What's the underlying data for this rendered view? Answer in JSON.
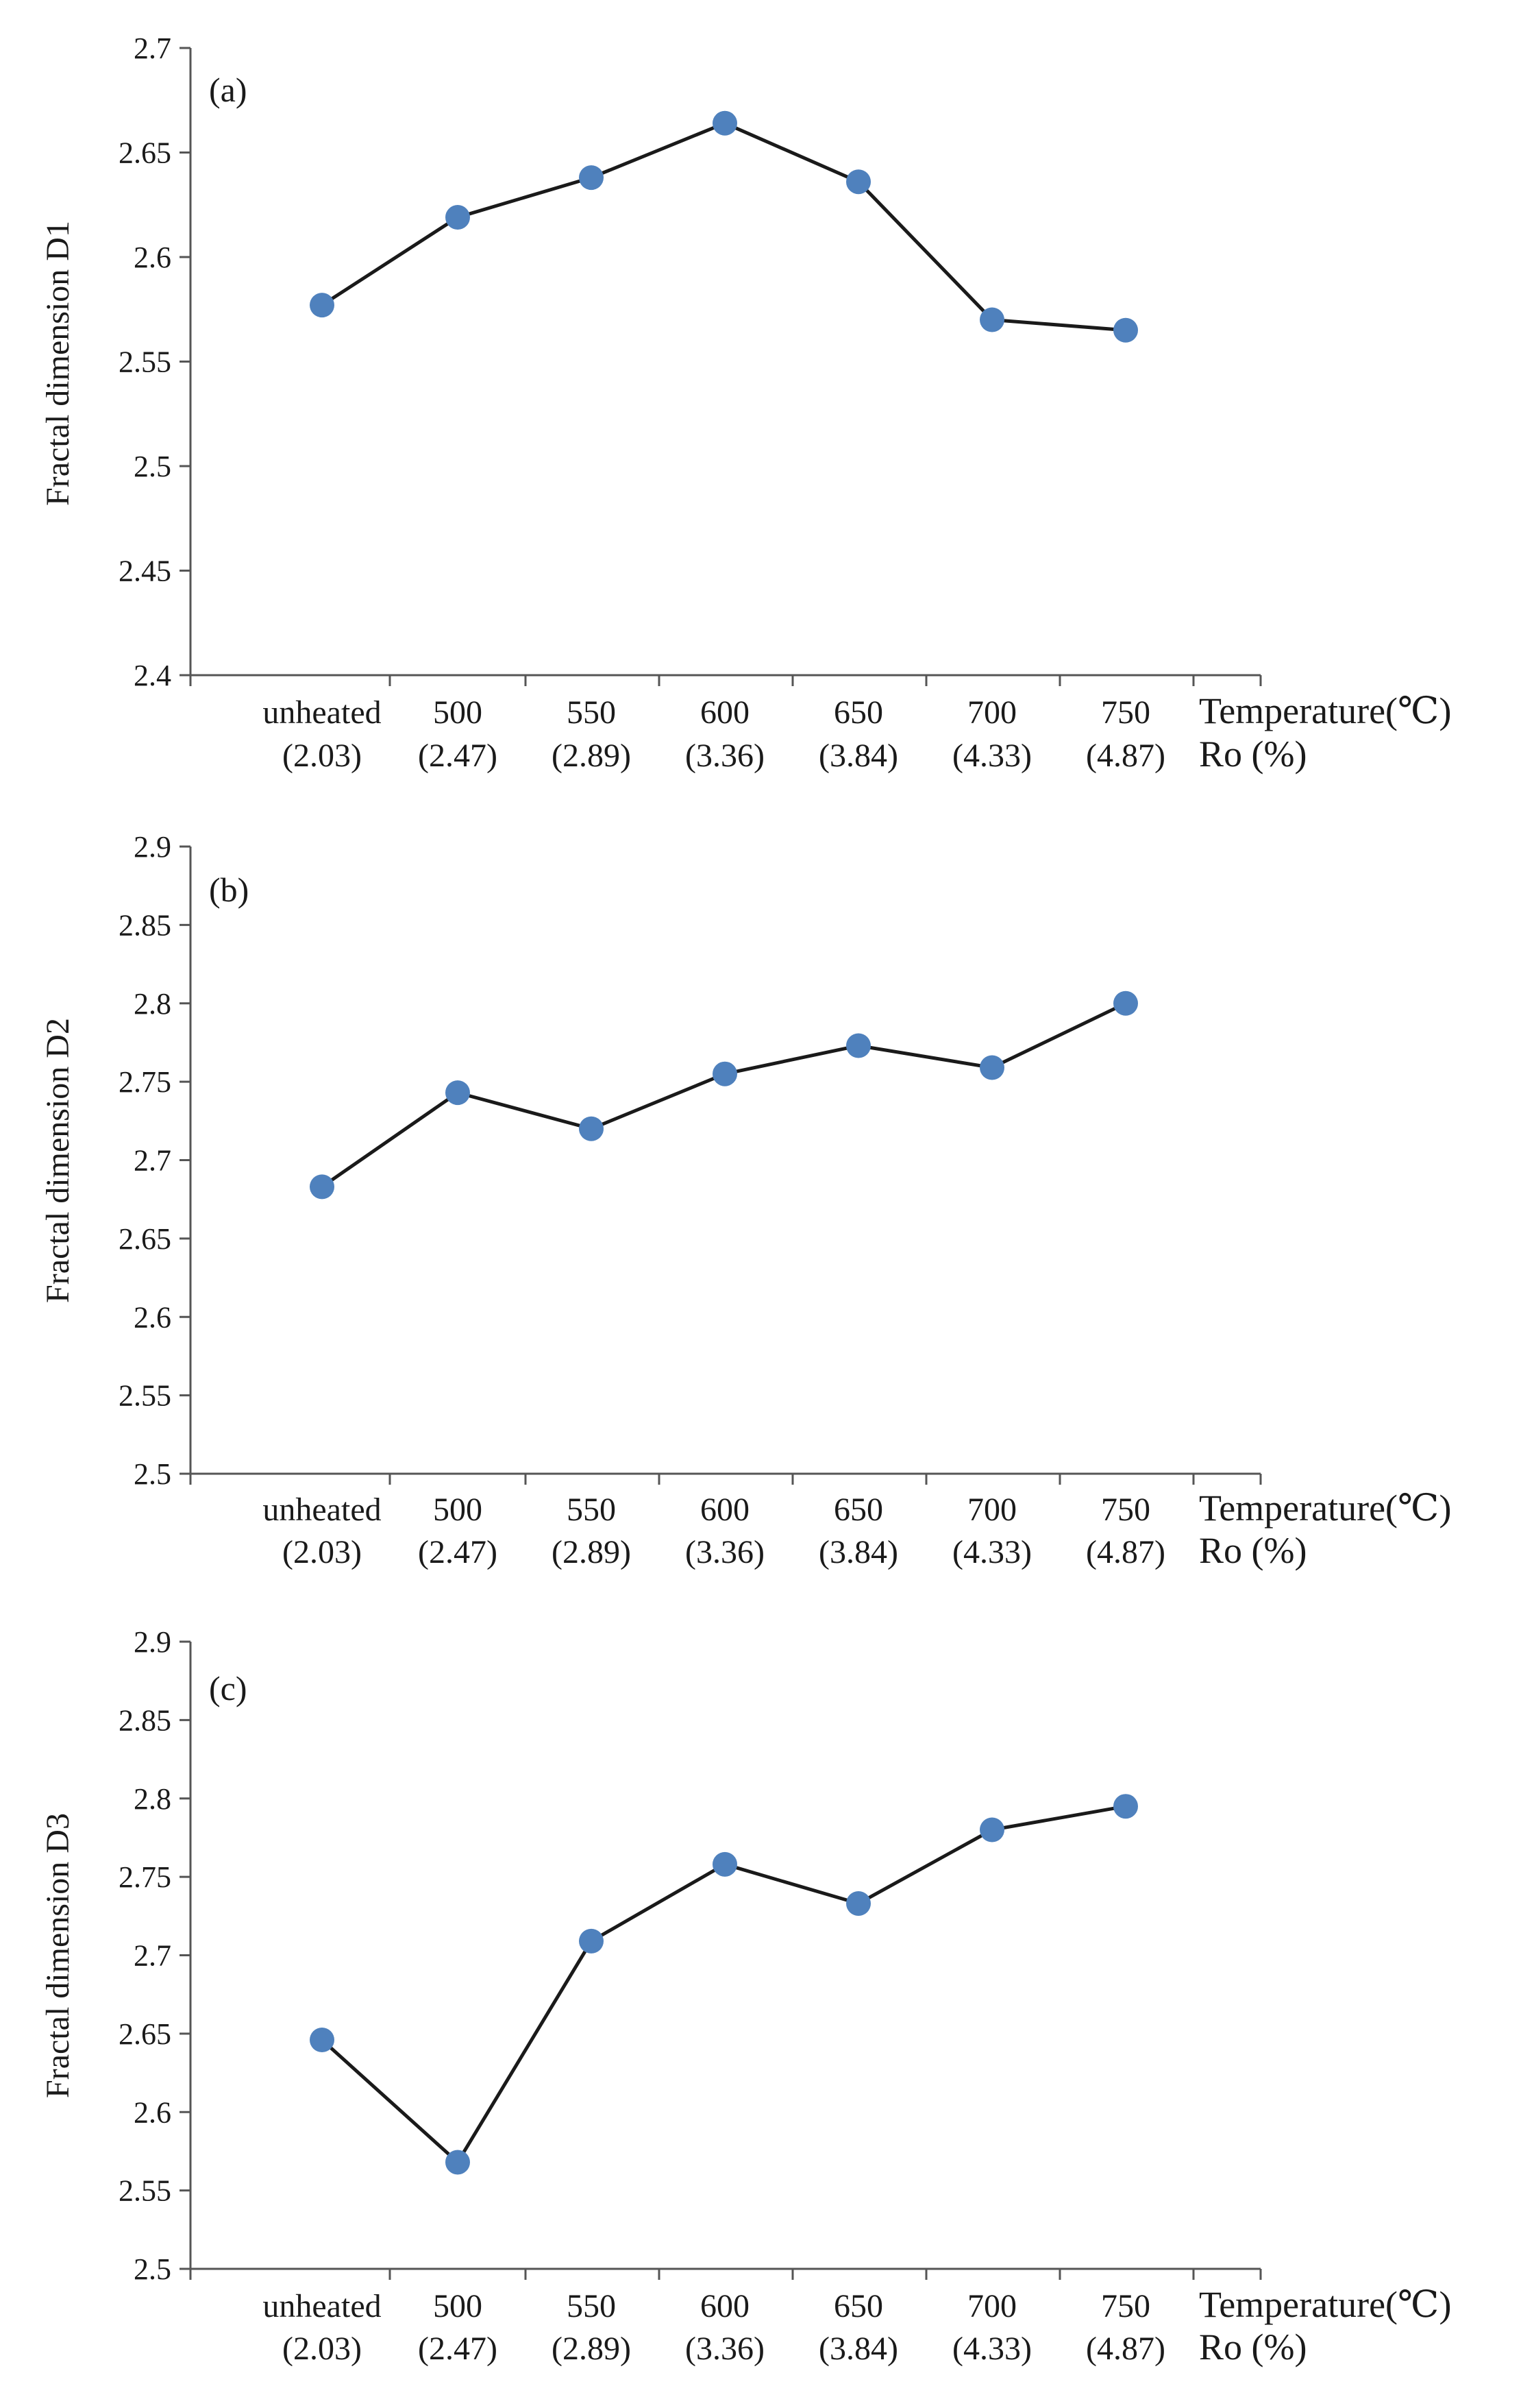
{
  "chart_data": [
    {
      "type": "line",
      "panel_label": "(a)",
      "title": "",
      "ylabel": "Fractal dimension D1",
      "xlabel_primary": "Temperature(℃)",
      "xlabel_secondary": "Ro (%)",
      "categories": [
        "unheated",
        "500",
        "550",
        "600",
        "650",
        "700",
        "750"
      ],
      "categories_secondary": [
        "(2.03)",
        "(2.47)",
        "(2.89)",
        "(3.36)",
        "(3.84)",
        "(4.33)",
        "(4.87)"
      ],
      "ylim": [
        2.4,
        2.7
      ],
      "yticks": [
        "2.4",
        "2.45",
        "2.5",
        "2.55",
        "2.6",
        "2.65",
        "2.7"
      ],
      "grid": false,
      "series": [
        {
          "name": "D1",
          "values": [
            2.577,
            2.619,
            2.638,
            2.664,
            2.636,
            2.57,
            2.565
          ]
        }
      ]
    },
    {
      "type": "line",
      "panel_label": "(b)",
      "title": "",
      "ylabel": "Fractal dimension D2",
      "xlabel_primary": "Temperature(℃)",
      "xlabel_secondary": "Ro (%)",
      "categories": [
        "unheated",
        "500",
        "550",
        "600",
        "650",
        "700",
        "750"
      ],
      "categories_secondary": [
        "(2.03)",
        "(2.47)",
        "(2.89)",
        "(3.36)",
        "(3.84)",
        "(4.33)",
        "(4.87)"
      ],
      "ylim": [
        2.5,
        2.9
      ],
      "yticks": [
        "2.5",
        "2.55",
        "2.6",
        "2.65",
        "2.7",
        "2.75",
        "2.8",
        "2.85",
        "2.9"
      ],
      "grid": false,
      "series": [
        {
          "name": "D2",
          "values": [
            2.683,
            2.743,
            2.72,
            2.755,
            2.773,
            2.759,
            2.8
          ]
        }
      ]
    },
    {
      "type": "line",
      "panel_label": "(c)",
      "title": "",
      "ylabel": "Fractal dimension D3",
      "xlabel_primary": "Temperature(℃)",
      "xlabel_secondary": "Ro (%)",
      "categories": [
        "unheated",
        "500",
        "550",
        "600",
        "650",
        "700",
        "750"
      ],
      "categories_secondary": [
        "(2.03)",
        "(2.47)",
        "(2.89)",
        "(3.36)",
        "(3.84)",
        "(4.33)",
        "(4.87)"
      ],
      "ylim": [
        2.5,
        2.9
      ],
      "yticks": [
        "2.5",
        "2.55",
        "2.6",
        "2.65",
        "2.7",
        "2.75",
        "2.8",
        "2.85",
        "2.9"
      ],
      "grid": false,
      "series": [
        {
          "name": "D3",
          "values": [
            2.646,
            2.568,
            2.709,
            2.758,
            2.733,
            2.78,
            2.795
          ]
        }
      ]
    }
  ],
  "colors": {
    "marker": "#4f81bd",
    "line": "#1a1a1a",
    "axis": "#555555"
  }
}
